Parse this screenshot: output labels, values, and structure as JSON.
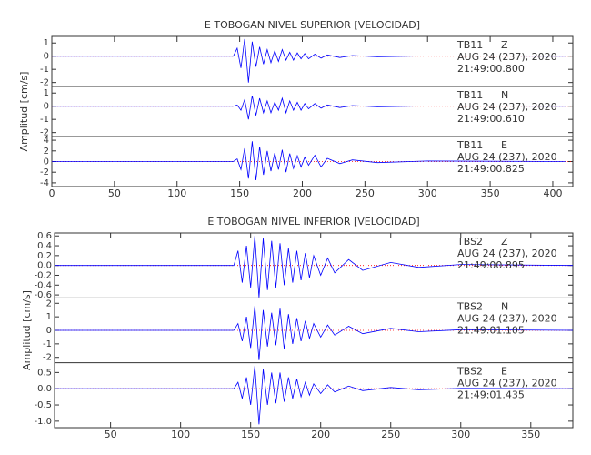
{
  "chart_data": [
    {
      "type": "line",
      "title": "E TOBOGAN NIVEL SUPERIOR [VELOCIDAD]",
      "ylabel": "Amplitud [cm/s]",
      "xlim": [
        0,
        416
      ],
      "xticks": [
        0,
        50,
        100,
        150,
        200,
        250,
        300,
        350,
        400
      ],
      "x": [
        0,
        145,
        148,
        151,
        154,
        157,
        160,
        163,
        166,
        169,
        172,
        175,
        178,
        181,
        184,
        187,
        190,
        193,
        196,
        199,
        202,
        205,
        210,
        215,
        220,
        230,
        240,
        260,
        300,
        410
      ],
      "baseline_color": "#ff0000",
      "series": [
        {
          "station": "TB11",
          "component": "Z",
          "date": "AUG 24 (237), 2020",
          "time": "21:49:00.800",
          "color": "#0000ff",
          "ylim": [
            -2.3,
            1.5
          ],
          "yticks": [
            1,
            0,
            -1,
            -2
          ],
          "values": [
            0,
            0,
            0.6,
            -0.9,
            1.3,
            -2.0,
            1.1,
            -0.8,
            0.7,
            -0.6,
            0.5,
            -0.5,
            0.4,
            -0.4,
            0.5,
            -0.3,
            0.3,
            -0.3,
            0.25,
            -0.2,
            0.2,
            -0.2,
            0.15,
            -0.15,
            0.1,
            -0.1,
            0.05,
            -0.05,
            0.02,
            0
          ]
        },
        {
          "station": "TB11",
          "component": "N",
          "date": "AUG 24 (237), 2020",
          "time": "21:49:00.610",
          "color": "#0000ff",
          "ylim": [
            -2.3,
            1.5
          ],
          "yticks": [
            1,
            0,
            -1,
            -2
          ],
          "values": [
            0,
            0,
            0.1,
            -0.3,
            0.5,
            -1.0,
            0.8,
            -0.7,
            0.6,
            -0.5,
            0.4,
            -0.5,
            0.3,
            -0.3,
            0.6,
            -0.5,
            0.4,
            -0.3,
            0.3,
            -0.3,
            0.2,
            -0.2,
            0.2,
            -0.15,
            0.1,
            -0.1,
            0.05,
            -0.04,
            0.02,
            0
          ]
        },
        {
          "station": "TB11",
          "component": "E",
          "date": "AUG 24 (237), 2020",
          "time": "21:49:00.825",
          "color": "#0000ff",
          "ylim": [
            -4.7,
            4.7
          ],
          "yticks": [
            4,
            2,
            0,
            -2,
            -4
          ],
          "values": [
            0,
            0,
            0.5,
            -1.5,
            2.5,
            -3.2,
            3.8,
            -3.5,
            2.8,
            -2.5,
            2.0,
            -1.8,
            1.6,
            -1.5,
            2.2,
            -2.0,
            1.5,
            -1.3,
            1.1,
            -1.0,
            0.8,
            -0.7,
            1.2,
            -1.0,
            0.6,
            -0.4,
            0.3,
            -0.2,
            0.1,
            0
          ]
        }
      ]
    },
    {
      "type": "line",
      "title": "E TOBOGAN NIVEL INFERIOR [VELOCIDAD]",
      "ylabel": "Amplitud [cm/s]",
      "xlim": [
        10,
        380
      ],
      "xticks": [
        50,
        100,
        150,
        200,
        250,
        300,
        350
      ],
      "x": [
        10,
        138,
        141,
        144,
        147,
        150,
        153,
        156,
        159,
        162,
        165,
        168,
        171,
        174,
        177,
        180,
        183,
        186,
        189,
        192,
        195,
        200,
        205,
        210,
        220,
        230,
        250,
        270,
        300,
        380
      ],
      "baseline_color": "#ff0000",
      "series": [
        {
          "station": "TBS2",
          "component": "Z",
          "date": "AUG 24 (237), 2020",
          "time": "21:49:00.895",
          "color": "#0000ff",
          "ylim": [
            -0.66,
            0.66
          ],
          "yticks": [
            0.6,
            0.4,
            0.2,
            {
              "value": 0,
              "label": "0.0"
            },
            -0.2,
            -0.4,
            -0.6
          ],
          "values": [
            0,
            0,
            0.3,
            -0.35,
            0.4,
            -0.45,
            0.6,
            -0.65,
            0.55,
            -0.5,
            0.5,
            -0.45,
            0.45,
            -0.4,
            0.35,
            -0.35,
            0.3,
            -0.3,
            0.25,
            -0.25,
            0.2,
            -0.2,
            0.15,
            -0.15,
            0.12,
            -0.1,
            0.06,
            -0.04,
            0.02,
            0
          ]
        },
        {
          "station": "TBS2",
          "component": "N",
          "date": "AUG 24 (237), 2020",
          "time": "21:49:01.105",
          "color": "#0000ff",
          "ylim": [
            -2.4,
            2.4
          ],
          "yticks": [
            2,
            1,
            0,
            -1,
            -2
          ],
          "values": [
            0,
            0,
            0.5,
            -0.8,
            1.0,
            -1.3,
            1.8,
            -2.2,
            1.5,
            -1.2,
            1.3,
            -1.1,
            1.6,
            -1.4,
            1.2,
            -1.0,
            0.9,
            -0.8,
            0.7,
            -0.6,
            0.5,
            -0.5,
            0.4,
            -0.35,
            0.3,
            -0.25,
            0.15,
            -0.1,
            0.05,
            0
          ]
        },
        {
          "station": "TBS2",
          "component": "E",
          "date": "AUG 24 (237), 2020",
          "time": "21:49:01.435",
          "color": "#0000ff",
          "ylim": [
            -1.2,
            0.8
          ],
          "yticks": [
            0.5,
            {
              "value": 0,
              "label": "0.0"
            },
            -0.5,
            {
              "value": -1,
              "label": "-1.0"
            }
          ],
          "values": [
            0,
            0,
            0.2,
            -0.3,
            0.35,
            -0.5,
            0.7,
            -1.1,
            0.6,
            -0.5,
            0.5,
            -0.45,
            0.5,
            -0.4,
            0.35,
            -0.3,
            0.3,
            -0.25,
            0.2,
            -0.2,
            0.15,
            -0.15,
            0.12,
            -0.1,
            0.08,
            -0.06,
            0.04,
            -0.03,
            0.01,
            0
          ]
        }
      ]
    }
  ]
}
